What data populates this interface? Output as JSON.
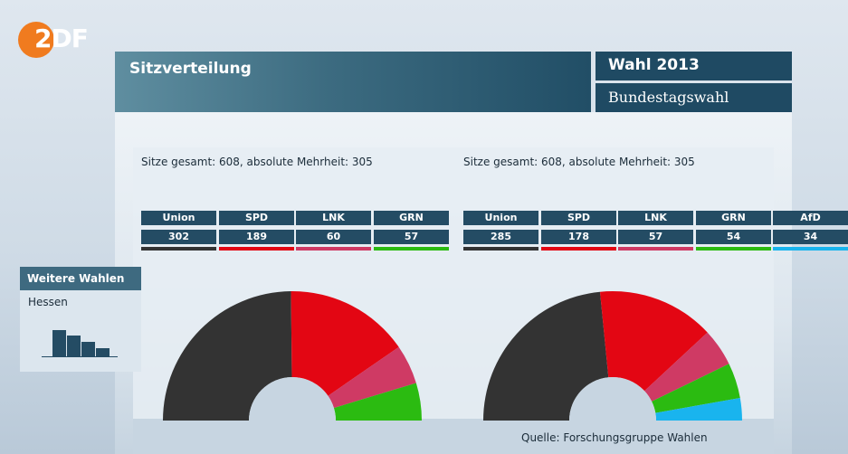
{
  "header": {
    "title": "Sitzverteilung",
    "election": "Wahl 2013",
    "election_type": "Bundestagswahl"
  },
  "sidebar": {
    "header": "Weitere Wahlen",
    "item": "Hessen",
    "mini_bars": [
      0.8,
      0.65,
      0.45,
      0.25
    ]
  },
  "source": "Quelle: Forschungsgruppe Wahlen",
  "colors": {
    "Union": "#333333",
    "SPD": "#e30613",
    "LNK": "#cf3a64",
    "GRN": "#2bbb11",
    "AfD": "#19b4ee"
  },
  "chart_data": [
    {
      "type": "pie",
      "subtitle": "Sitze gesamt: 608, absolute Mehrheit: 305",
      "categories": [
        "Union",
        "SPD",
        "LNK",
        "GRN"
      ],
      "values": [
        302,
        189,
        60,
        57
      ],
      "total": 608
    },
    {
      "type": "pie",
      "subtitle": "Sitze gesamt: 608, absolute Mehrheit: 305",
      "categories": [
        "Union",
        "SPD",
        "LNK",
        "GRN",
        "AfD"
      ],
      "values": [
        285,
        178,
        57,
        54,
        34
      ],
      "total": 608
    }
  ]
}
